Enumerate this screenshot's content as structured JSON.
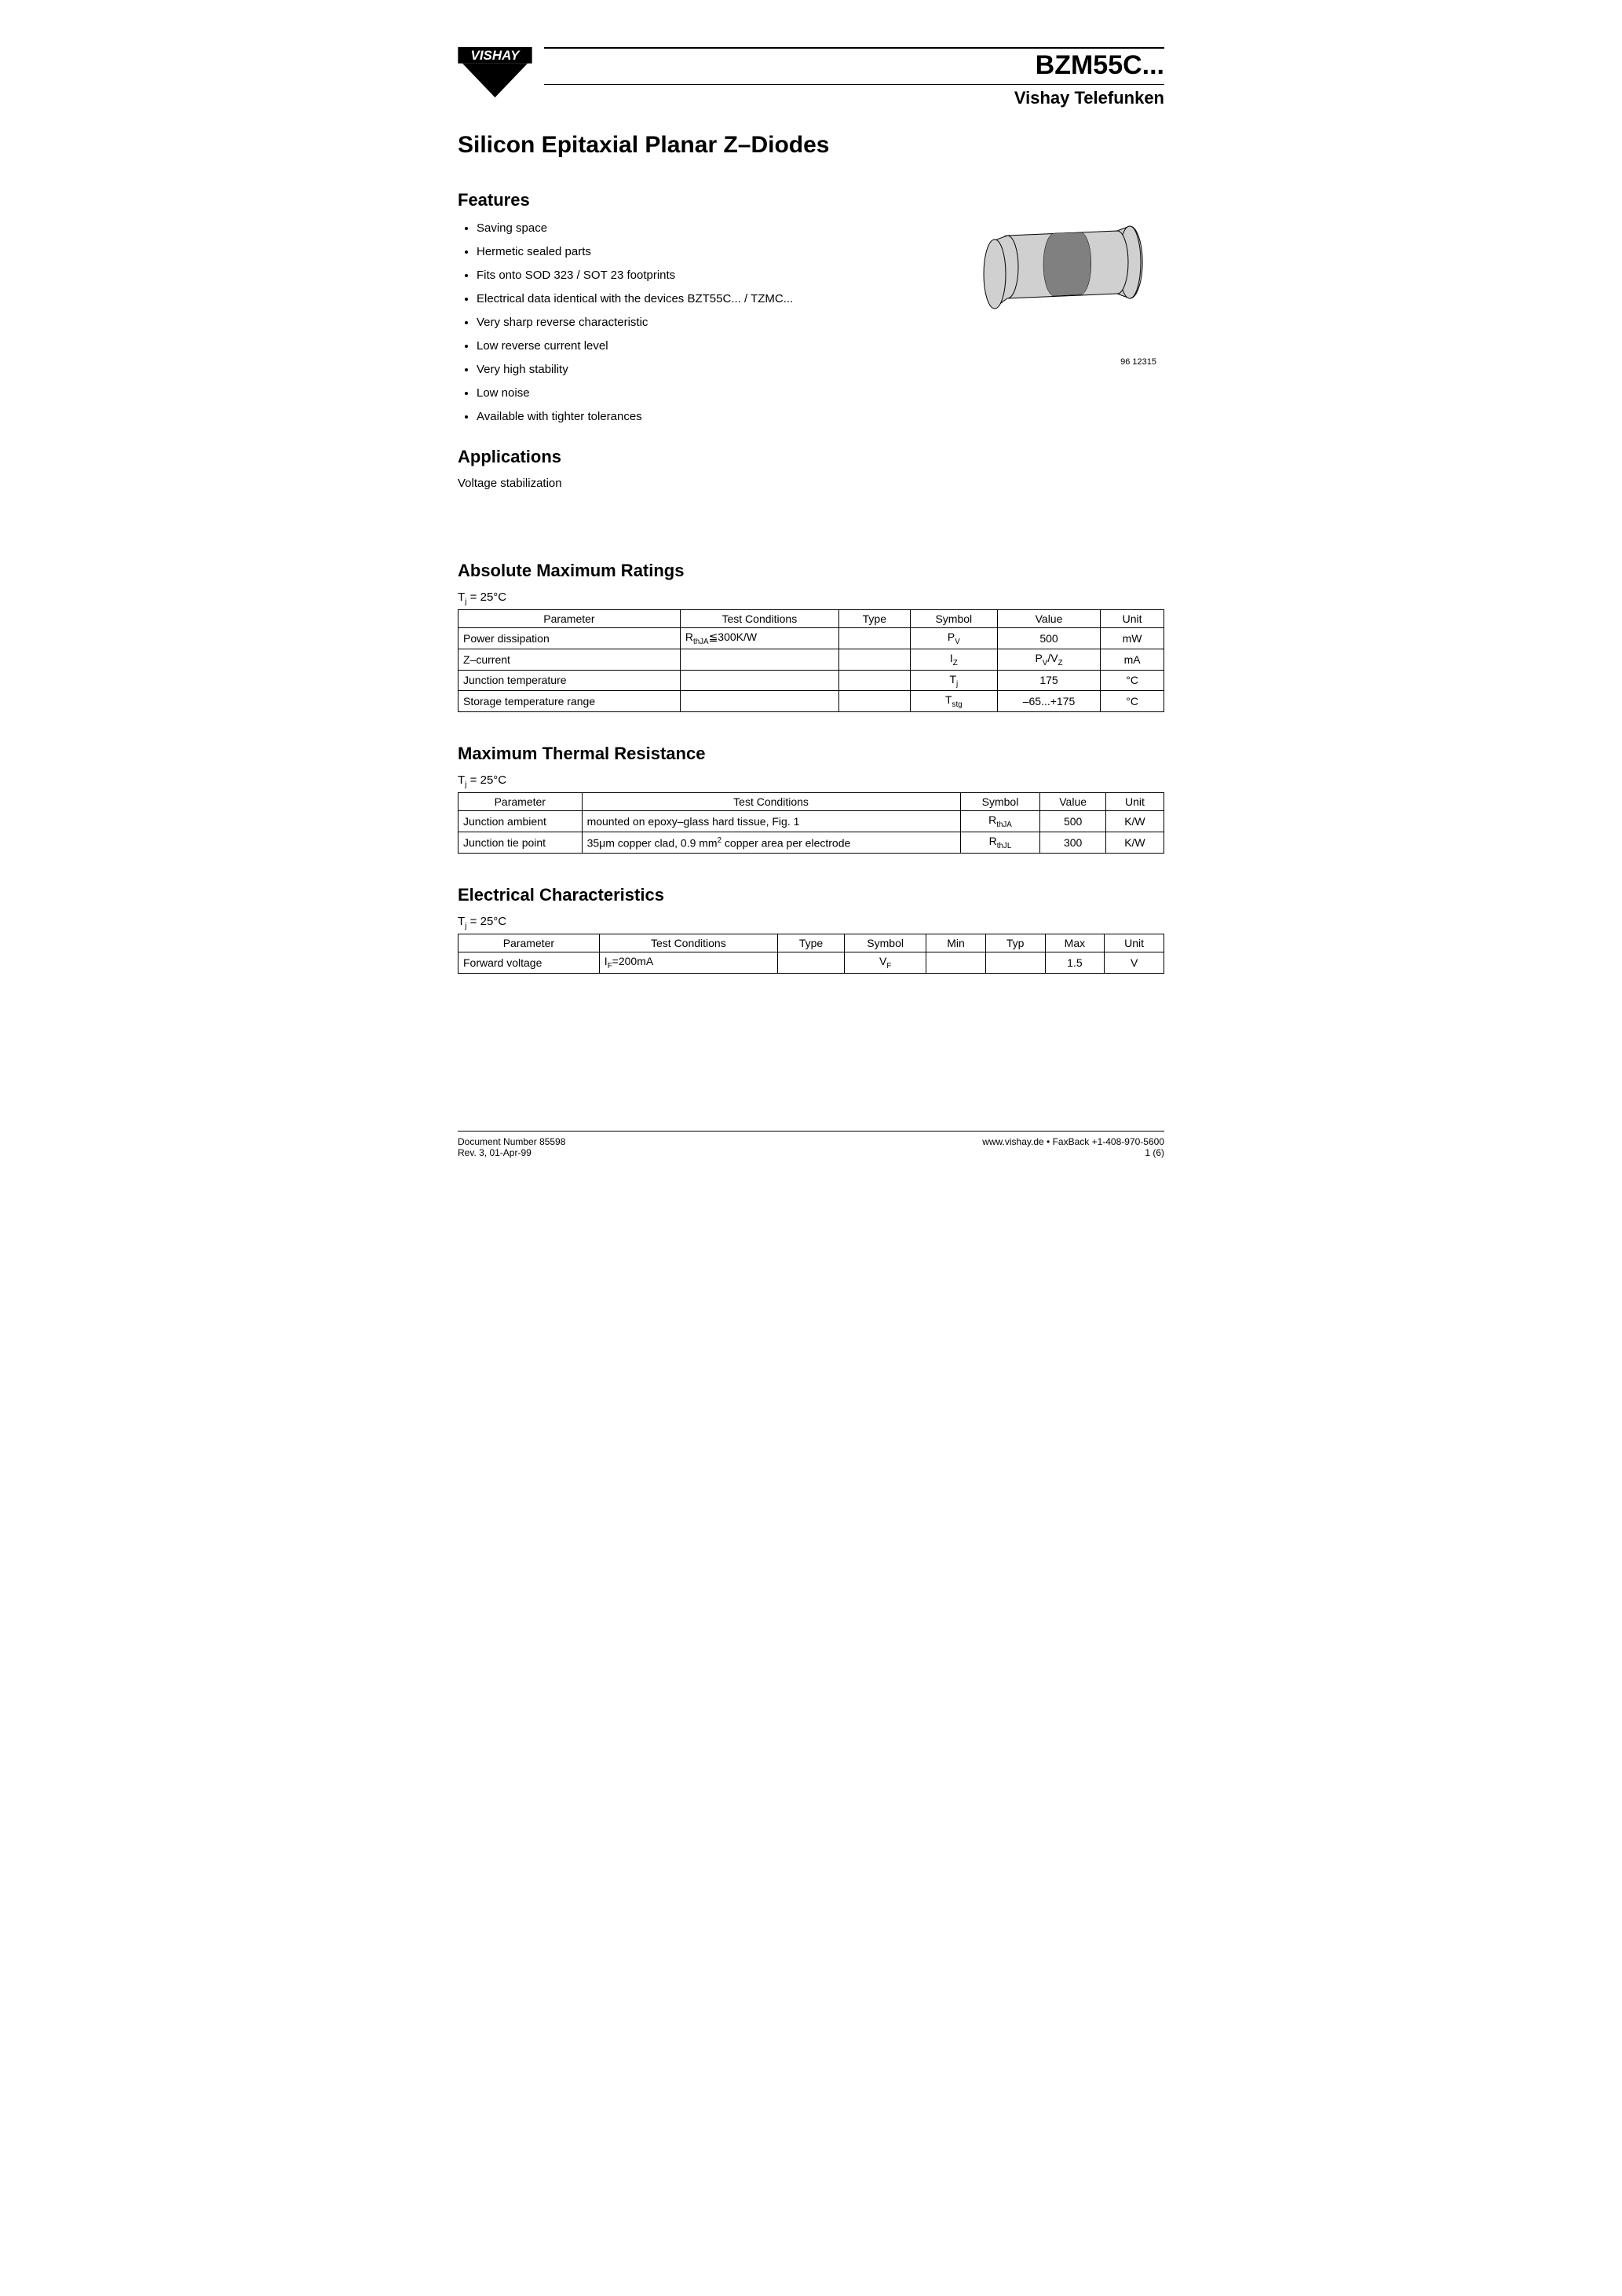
{
  "header": {
    "logo_text": "VISHAY",
    "part_number": "BZM55C...",
    "division": "Vishay Telefunken"
  },
  "title": "Silicon Epitaxial Planar Z–Diodes",
  "sections": {
    "features": {
      "heading": "Features",
      "items": [
        "Saving space",
        "Hermetic sealed parts",
        "Fits onto SOD 323 / SOT 23 footprints",
        "Electrical data identical with the devices BZT55C... / TZMC...",
        "Very sharp reverse characteristic",
        "Low reverse current level",
        "Very high stability",
        "Low noise",
        "Available with tighter tolerances"
      ]
    },
    "applications": {
      "heading": "Applications",
      "text": "Voltage stabilization"
    },
    "abs_max": {
      "heading": "Absolute Maximum Ratings",
      "condition": "Tj = 25°C",
      "columns": [
        "Parameter",
        "Test Conditions",
        "Type",
        "Symbol",
        "Value",
        "Unit"
      ],
      "rows": [
        {
          "parameter": "Power dissipation",
          "cond_html": "R<sub>thJA</sub>≦300K/W",
          "type": "",
          "symbol_html": "P<sub>V</sub>",
          "value": "500",
          "unit": "mW"
        },
        {
          "parameter": "Z–current",
          "cond_html": "",
          "type": "",
          "symbol_html": "I<sub>Z</sub>",
          "value_html": "P<sub>V</sub>/V<sub>Z</sub>",
          "unit": "mA"
        },
        {
          "parameter": "Junction temperature",
          "cond_html": "",
          "type": "",
          "symbol_html": "T<sub>j</sub>",
          "value": "175",
          "unit": "°C"
        },
        {
          "parameter": "Storage temperature range",
          "cond_html": "",
          "type": "",
          "symbol_html": "T<sub>stg</sub>",
          "value": "–65...+175",
          "unit": "°C"
        }
      ]
    },
    "thermal": {
      "heading": "Maximum Thermal Resistance",
      "condition": "Tj = 25°C",
      "columns": [
        "Parameter",
        "Test Conditions",
        "Symbol",
        "Value",
        "Unit"
      ],
      "rows": [
        {
          "parameter": "Junction ambient",
          "cond_html": "mounted on epoxy–glass hard tissue, Fig. 1",
          "symbol_html": "R<sub>thJA</sub>",
          "value": "500",
          "unit": "K/W"
        },
        {
          "parameter": "Junction tie point",
          "cond_html": "35μm copper clad, 0.9 mm<sup>2</sup> copper area per electrode",
          "symbol_html": "R<sub>thJL</sub>",
          "value": "300",
          "unit": "K/W"
        }
      ]
    },
    "electrical": {
      "heading": "Electrical Characteristics",
      "condition": "Tj = 25°C",
      "columns": [
        "Parameter",
        "Test Conditions",
        "Type",
        "Symbol",
        "Min",
        "Typ",
        "Max",
        "Unit"
      ],
      "rows": [
        {
          "parameter": "Forward voltage",
          "cond_html": "I<sub>F</sub>=200mA",
          "type": "",
          "symbol_html": "V<sub>F</sub>",
          "min": "",
          "typ": "",
          "max": "1.5",
          "unit": "V"
        }
      ]
    }
  },
  "illustration": {
    "caption": "96 12315",
    "colors": {
      "body_fill": "#d0d0d0",
      "band_fill": "#808080",
      "stroke": "#000000",
      "stroke_width": 1
    }
  },
  "footer": {
    "doc_number": "Document Number 85598",
    "revision": "Rev. 3, 01-Apr-99",
    "url_fax": "www.vishay.de • FaxBack +1-408-970-5600",
    "page": "1 (6)"
  },
  "table_styles": {
    "abs_max_widths": [
      "28%",
      "20%",
      "9%",
      "11%",
      "13%",
      "8%"
    ],
    "thermal_widths": [
      "17%",
      "52%",
      "11%",
      "9%",
      "8%"
    ],
    "electrical_widths": [
      "19%",
      "24%",
      "9%",
      "11%",
      "8%",
      "8%",
      "8%",
      "8%"
    ]
  }
}
